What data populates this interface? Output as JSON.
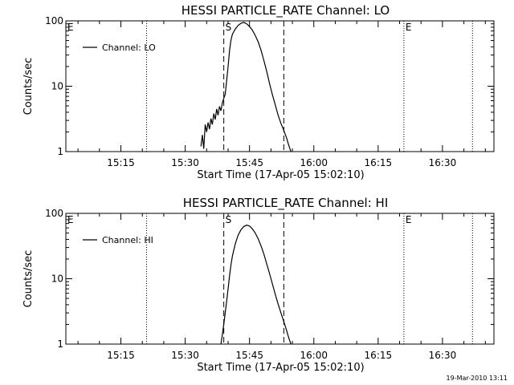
{
  "chart_data": [
    {
      "type": "line",
      "title": "HESSI PARTICLE_RATE Channel: LO",
      "xlabel": "Start Time (17-Apr-05 15:02:10)",
      "ylabel": "Counts/sec",
      "yscale": "log",
      "xlim": [
        "15:02:10",
        "16:42:00"
      ],
      "ylim": [
        1,
        100
      ],
      "xticks": [
        "15:15",
        "15:30",
        "15:45",
        "16:00",
        "16:15",
        "16:30"
      ],
      "yticks": [
        "1",
        "10",
        "100"
      ],
      "grid": false,
      "legend": {
        "placement": "top-left",
        "entries": [
          "Channel: LO"
        ]
      },
      "annotations": [
        {
          "label": "E",
          "time": "15:02:10",
          "style": "dotted"
        },
        {
          "label": "",
          "time": "15:21:00",
          "style": "dotted"
        },
        {
          "label": "S",
          "time": "15:39:00",
          "style": "dashed"
        },
        {
          "label": "",
          "time": "15:53:00",
          "style": "dashed"
        },
        {
          "label": "E",
          "time": "16:21:00",
          "style": "dotted"
        },
        {
          "label": "",
          "time": "16:37:00",
          "style": "dotted"
        }
      ],
      "series": [
        {
          "name": "Channel: LO",
          "x": [
            "15:33:40",
            "15:34:00",
            "15:34:20",
            "15:34:40",
            "15:35:00",
            "15:35:20",
            "15:35:40",
            "15:36:00",
            "15:36:20",
            "15:36:40",
            "15:37:00",
            "15:37:20",
            "15:37:40",
            "15:38:00",
            "15:38:20",
            "15:38:40",
            "15:39:00",
            "15:39:20",
            "15:39:40",
            "15:40:00",
            "15:40:20",
            "15:40:40",
            "15:41:00",
            "15:41:40",
            "15:42:20",
            "15:43:00",
            "15:43:40",
            "15:44:20",
            "15:45:00",
            "15:45:40",
            "15:46:20",
            "15:47:00",
            "15:47:40",
            "15:48:20",
            "15:49:00",
            "15:49:40",
            "15:50:20",
            "15:51:00",
            "15:51:40",
            "15:52:20",
            "15:53:00",
            "15:53:40",
            "15:54:00",
            "15:54:20",
            "15:54:40"
          ],
          "values": [
            1.2,
            1.8,
            1.1,
            2.6,
            2.0,
            2.8,
            2.2,
            3.2,
            2.6,
            3.8,
            3.1,
            4.5,
            3.6,
            4.9,
            4.2,
            5.6,
            6.5,
            7.5,
            12,
            20,
            35,
            50,
            62,
            75,
            85,
            92,
            95,
            90,
            82,
            72,
            60,
            48,
            36,
            25,
            17,
            11,
            7.4,
            5.2,
            3.6,
            2.7,
            2.1,
            1.6,
            1.35,
            1.15,
            1.0
          ]
        }
      ]
    },
    {
      "type": "line",
      "title": "HESSI PARTICLE_RATE Channel: HI",
      "xlabel": "Start Time (17-Apr-05 15:02:10)",
      "ylabel": "Counts/sec",
      "yscale": "log",
      "xlim": [
        "15:02:10",
        "16:42:00"
      ],
      "ylim": [
        1,
        100
      ],
      "xticks": [
        "15:15",
        "15:30",
        "15:45",
        "16:00",
        "16:15",
        "16:30"
      ],
      "yticks": [
        "1",
        "10",
        "100"
      ],
      "grid": false,
      "legend": {
        "placement": "top-left",
        "entries": [
          "Channel: HI"
        ]
      },
      "annotations": [
        {
          "label": "E",
          "time": "15:02:10",
          "style": "dotted"
        },
        {
          "label": "",
          "time": "15:21:00",
          "style": "dotted"
        },
        {
          "label": "S",
          "time": "15:39:00",
          "style": "dashed"
        },
        {
          "label": "",
          "time": "15:53:00",
          "style": "dashed"
        },
        {
          "label": "E",
          "time": "16:21:00",
          "style": "dotted"
        },
        {
          "label": "",
          "time": "16:37:00",
          "style": "dotted"
        }
      ],
      "series": [
        {
          "name": "Channel: HI",
          "x": [
            "15:38:20",
            "15:38:40",
            "15:39:00",
            "15:39:20",
            "15:39:40",
            "15:40:00",
            "15:40:20",
            "15:40:40",
            "15:41:00",
            "15:41:40",
            "15:42:20",
            "15:43:00",
            "15:43:40",
            "15:44:20",
            "15:45:00",
            "15:45:40",
            "15:46:20",
            "15:47:00",
            "15:47:40",
            "15:48:20",
            "15:49:00",
            "15:49:40",
            "15:50:20",
            "15:51:00",
            "15:51:40",
            "15:52:20",
            "15:53:00",
            "15:53:40",
            "15:54:00",
            "15:54:20",
            "15:54:40"
          ],
          "values": [
            1.0,
            1.4,
            2.0,
            3.0,
            4.5,
            7.0,
            11,
            16,
            22,
            34,
            46,
            56,
            63,
            66,
            64,
            58,
            50,
            41,
            32,
            24,
            17,
            12,
            8.3,
            5.8,
            4.1,
            3.0,
            2.2,
            1.6,
            1.35,
            1.15,
            1.0
          ]
        }
      ]
    }
  ],
  "footer": {
    "timestamp": "19-Mar-2010 13:11"
  }
}
